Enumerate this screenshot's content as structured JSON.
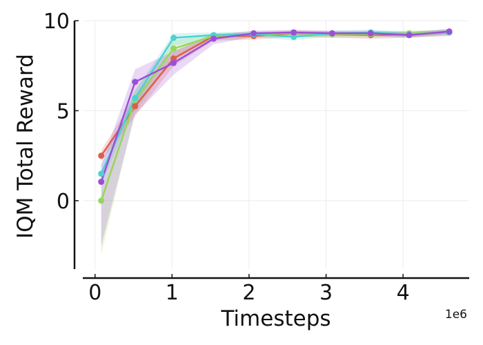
{
  "chart_data": {
    "type": "line",
    "xlabel": "Timesteps",
    "ylabel": "IQM Total Reward",
    "x_offset_label": "1e6",
    "xlim": [
      -0.15,
      4.85
    ],
    "ylim": [
      -3.8,
      10
    ],
    "xticks": [
      0,
      1,
      2,
      3,
      4
    ],
    "yticks": [
      0,
      5,
      10
    ],
    "grid": true,
    "legend": "none",
    "x": [
      0.08,
      0.52,
      1.02,
      1.54,
      2.06,
      2.58,
      3.08,
      3.58,
      4.08,
      4.6
    ],
    "series": [
      {
        "color": "#dd5d4e",
        "values": [
          2.5,
          5.25,
          7.9,
          9.15,
          9.15,
          9.3,
          9.25,
          9.2,
          9.25,
          9.35
        ],
        "lower": [
          2.2,
          4.7,
          7.5,
          8.9,
          8.95,
          9.1,
          9.05,
          9.0,
          9.05,
          9.15
        ],
        "upper": [
          2.8,
          5.8,
          8.3,
          9.3,
          9.3,
          9.45,
          9.4,
          9.35,
          9.4,
          9.5
        ]
      },
      {
        "color": "#96d65a",
        "values": [
          0.0,
          5.6,
          8.45,
          9.15,
          9.25,
          9.3,
          9.25,
          9.25,
          9.3,
          9.35
        ],
        "lower": [
          -3.0,
          4.9,
          8.0,
          8.95,
          9.05,
          9.1,
          9.05,
          9.05,
          9.1,
          9.15
        ],
        "upper": [
          1.5,
          6.2,
          8.9,
          9.3,
          9.4,
          9.45,
          9.4,
          9.4,
          9.45,
          9.5
        ]
      },
      {
        "color": "#4fd0d2",
        "values": [
          1.5,
          5.7,
          9.05,
          9.2,
          9.25,
          9.1,
          9.3,
          9.35,
          9.25,
          9.35
        ],
        "lower": [
          0.9,
          5.3,
          8.6,
          9.05,
          9.1,
          8.9,
          9.15,
          9.2,
          9.1,
          9.2
        ],
        "upper": [
          2.0,
          6.1,
          9.3,
          9.35,
          9.4,
          9.3,
          9.45,
          9.5,
          9.4,
          9.5
        ]
      },
      {
        "color": "#9b4fd8",
        "values": [
          1.05,
          6.6,
          7.65,
          9.0,
          9.3,
          9.35,
          9.3,
          9.3,
          9.2,
          9.4
        ],
        "lower": [
          -2.5,
          4.8,
          7.0,
          8.7,
          9.1,
          9.2,
          9.15,
          9.15,
          9.05,
          9.25
        ],
        "upper": [
          2.0,
          7.3,
          8.3,
          9.2,
          9.45,
          9.5,
          9.45,
          9.45,
          9.35,
          9.55
        ]
      }
    ]
  }
}
